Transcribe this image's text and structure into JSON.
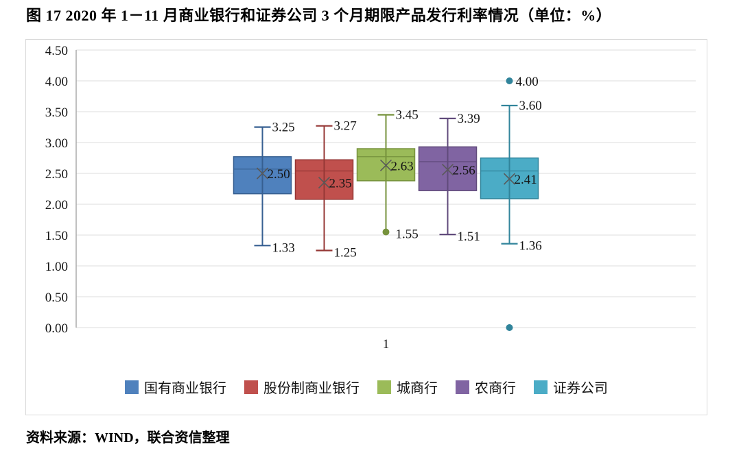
{
  "title": "图 17  2020 年 1－11 月商业银行和证券公司 3 个月期限产品发行利率情况（单位：%）",
  "source": "资料来源：WIND，联合资信整理",
  "chart_data": {
    "type": "boxplot",
    "unit": "%",
    "categories": [
      "1"
    ],
    "y_axis": {
      "min": 0,
      "max": 4.5,
      "step": 0.5,
      "tick_labels": [
        "0.00",
        "0.50",
        "1.00",
        "1.50",
        "2.00",
        "2.50",
        "3.00",
        "3.50",
        "4.00",
        "4.50"
      ],
      "grid": true
    },
    "legend_position": "bottom",
    "series": [
      {
        "name": "国有商业银行",
        "fill": "#4F81BD",
        "stroke": "#365F91",
        "q1": 2.17,
        "median": 2.57,
        "q3": 2.77,
        "mean": 2.5,
        "whisker_high": 3.25,
        "whisker_low": 1.33,
        "low_marker": "cap",
        "labels": {
          "high": "3.25",
          "low": "1.33",
          "mean": "2.50"
        },
        "outliers": []
      },
      {
        "name": "股份制商业银行",
        "fill": "#C0504D",
        "stroke": "#953735",
        "q1": 2.08,
        "median": 2.54,
        "q3": 2.72,
        "mean": 2.35,
        "whisker_high": 3.27,
        "whisker_low": 1.25,
        "low_marker": "cap",
        "labels": {
          "high": "3.27",
          "low": "1.25",
          "mean": "2.35"
        },
        "outliers": []
      },
      {
        "name": "城商行",
        "fill": "#9BBB59",
        "stroke": "#76923C",
        "q1": 2.38,
        "median": 2.77,
        "q3": 2.9,
        "mean": 2.63,
        "whisker_high": 3.45,
        "whisker_low": 1.55,
        "low_marker": "dot",
        "labels": {
          "high": "3.45",
          "low": "1.55",
          "mean": "2.63"
        },
        "outliers": []
      },
      {
        "name": "农商行",
        "fill": "#8064A2",
        "stroke": "#604A7B",
        "q1": 2.22,
        "median": 2.69,
        "q3": 2.93,
        "mean": 2.56,
        "whisker_high": 3.39,
        "whisker_low": 1.51,
        "low_marker": "cap",
        "labels": {
          "high": "3.39",
          "low": "1.51",
          "mean": "2.56"
        },
        "outliers": []
      },
      {
        "name": "证券公司",
        "fill": "#4BACC6",
        "stroke": "#31849B",
        "q1": 2.09,
        "median": 2.54,
        "q3": 2.75,
        "mean": 2.41,
        "whisker_high": 3.6,
        "whisker_low": 1.36,
        "low_marker": "cap",
        "labels": {
          "high": "3.60",
          "low": "1.36",
          "mean": "2.41"
        },
        "outliers": [
          {
            "value": 4.0,
            "label": "4.00"
          },
          {
            "value": 0.0,
            "label": ""
          }
        ]
      }
    ]
  }
}
